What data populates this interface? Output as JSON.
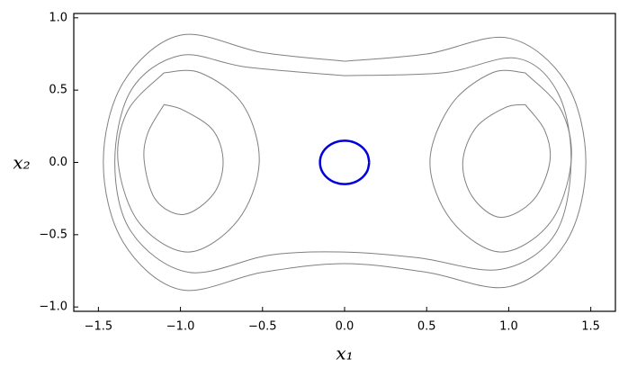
{
  "chart_data": {
    "type": "line",
    "xlabel": "x₁",
    "ylabel": "x₂",
    "xlim": [
      -1.65,
      1.65
    ],
    "ylim": [
      -1.03,
      1.03
    ],
    "xticks": [
      {
        "value": -1.5,
        "label": "−1.5"
      },
      {
        "value": -1.0,
        "label": "−1.0"
      },
      {
        "value": -0.5,
        "label": "−0.5"
      },
      {
        "value": 0,
        "label": "0.0"
      },
      {
        "value": 0.5,
        "label": "0.5"
      },
      {
        "value": 1.0,
        "label": "1.0"
      },
      {
        "value": 1.5,
        "label": "1.5"
      }
    ],
    "yticks": [
      {
        "value": -1.0,
        "label": "−1.0"
      },
      {
        "value": -0.5,
        "label": "−0.5"
      },
      {
        "value": 0,
        "label": "0.0"
      },
      {
        "value": 0.5,
        "label": "0.5"
      },
      {
        "value": 1.0,
        "label": "1.0"
      }
    ],
    "series": [
      {
        "color": "#808080",
        "x": [
          0,
          0.5,
          1.0,
          1.35,
          1.47,
          1.35,
          1.0,
          0.5,
          0,
          -0.5,
          -1.0,
          -1.35,
          -1.47,
          -1.35,
          -1.0,
          -0.5,
          0
        ],
        "y": [
          0.7,
          0.75,
          0.86,
          0.55,
          0,
          -0.55,
          -0.86,
          -0.76,
          -0.7,
          -0.76,
          -0.88,
          -0.55,
          0,
          0.55,
          0.88,
          0.76,
          0.7
        ]
      },
      {
        "color": "#808080",
        "x": [
          0,
          0.6,
          1.05,
          1.3,
          1.38,
          1.28,
          0.95,
          0.45,
          0,
          -0.45,
          -0.95,
          -1.3,
          -1.4,
          -1.3,
          -1.0,
          -0.6,
          0
        ],
        "y": [
          0.6,
          0.62,
          0.72,
          0.48,
          0,
          -0.5,
          -0.74,
          -0.66,
          -0.62,
          -0.64,
          -0.76,
          -0.48,
          0,
          0.5,
          0.74,
          0.66,
          0.6
        ]
      },
      {
        "color": "#808080",
        "x": [
          1.1,
          1.32,
          1.38,
          1.25,
          0.95,
          0.65,
          0.52,
          0.65,
          0.9,
          1.1
        ],
        "y": [
          0.62,
          0.36,
          0,
          -0.42,
          -0.62,
          -0.4,
          0,
          0.4,
          0.62,
          0.62
        ]
      },
      {
        "color": "#808080",
        "x": [
          1.1,
          1.22,
          1.25,
          1.15,
          0.95,
          0.78,
          0.72,
          0.8,
          0.98,
          1.1
        ],
        "y": [
          0.4,
          0.22,
          0,
          -0.26,
          -0.38,
          -0.24,
          0,
          0.24,
          0.38,
          0.4
        ]
      },
      {
        "color": "#808080",
        "x": [
          -1.1,
          -0.88,
          -0.62,
          -0.52,
          -0.65,
          -0.95,
          -1.25,
          -1.38,
          -1.32,
          -1.1
        ],
        "y": [
          0.62,
          0.62,
          0.4,
          0,
          -0.4,
          -0.62,
          -0.42,
          0,
          0.36,
          0.62
        ]
      },
      {
        "color": "#808080",
        "x": [
          -1.1,
          -0.98,
          -0.8,
          -0.74,
          -0.8,
          -0.98,
          -1.15,
          -1.22,
          -1.2,
          -1.1
        ],
        "y": [
          0.4,
          0.36,
          0.22,
          0,
          -0.22,
          -0.36,
          -0.26,
          0,
          0.2,
          0.4
        ]
      },
      {
        "color": "#0000dd",
        "x": [
          0.15,
          0.139,
          0.106,
          0.057,
          0,
          -0.057,
          -0.106,
          -0.139,
          -0.15,
          -0.139,
          -0.106,
          -0.057,
          0,
          0.057,
          0.106,
          0.139,
          0.15
        ],
        "y": [
          0,
          0.057,
          0.106,
          0.139,
          0.15,
          0.139,
          0.106,
          0.057,
          0,
          -0.057,
          -0.106,
          -0.139,
          -0.15,
          -0.139,
          -0.106,
          -0.057,
          0
        ]
      }
    ]
  }
}
